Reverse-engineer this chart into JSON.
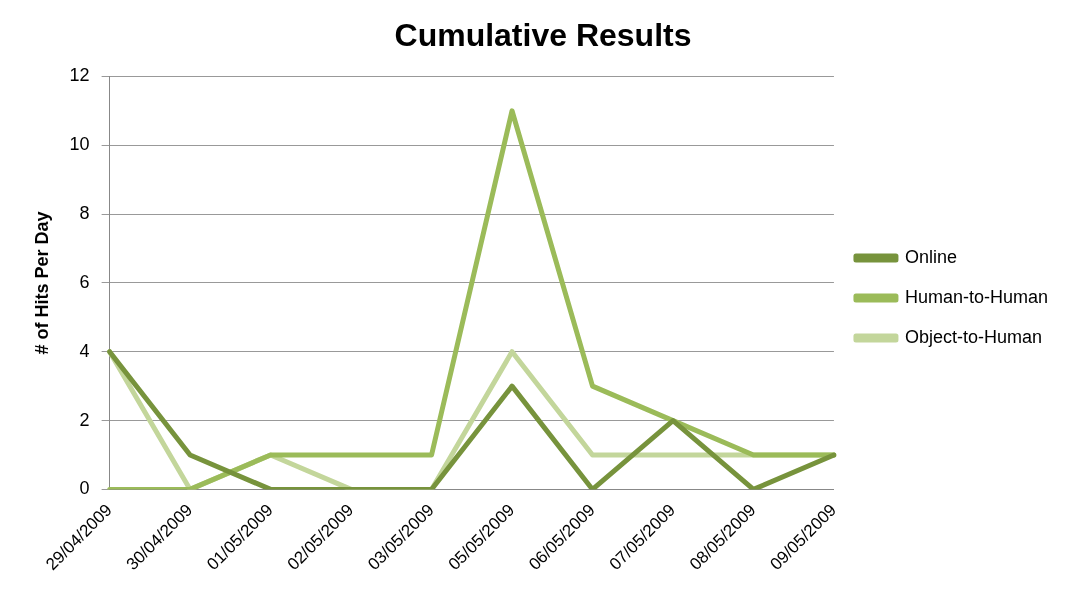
{
  "chart_data": {
    "type": "line",
    "title": "Cumulative Results",
    "ylabel": "# of Hits Per Day",
    "categories": [
      "29/04/2009",
      "30/04/2009",
      "01/05/2009",
      "02/05/2009",
      "03/05/2009",
      "05/05/2009",
      "06/05/2009",
      "07/05/2009",
      "08/05/2009",
      "09/05/2009"
    ],
    "series": [
      {
        "name": "Online",
        "color": "#77933c",
        "values": [
          4,
          1,
          0,
          0,
          0,
          3,
          0,
          2,
          0,
          1
        ]
      },
      {
        "name": "Human-to-Human",
        "color": "#9bbb59",
        "values": [
          0,
          0,
          1,
          1,
          1,
          11,
          3,
          2,
          1,
          1
        ]
      },
      {
        "name": "Object-to-Human",
        "color": "#c3d69b",
        "values": [
          4,
          0,
          1,
          0,
          0,
          4,
          1,
          1,
          1,
          1
        ]
      }
    ],
    "ylim": [
      0,
      12
    ],
    "yticks": [
      0,
      2,
      4,
      6,
      8,
      10,
      12
    ],
    "grid": "y",
    "legend": "right",
    "marker": "none",
    "line_style": "solid"
  }
}
